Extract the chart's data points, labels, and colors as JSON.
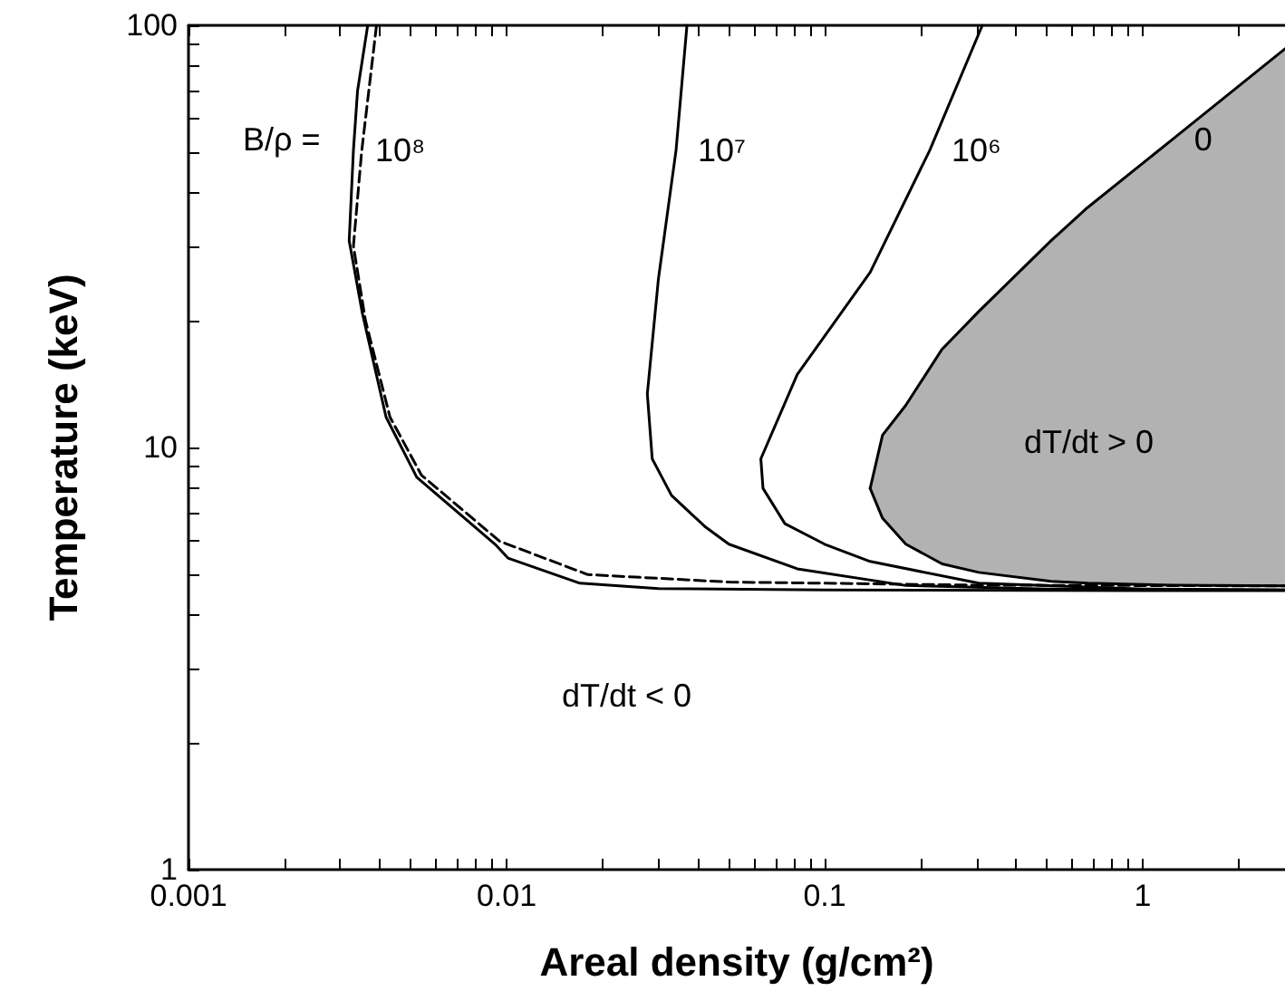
{
  "chart_data": {
    "type": "line",
    "xlabel": "Areal density (g/cm²)",
    "ylabel": "Temperature (keV)",
    "log": "xy",
    "grid": false,
    "legend": false,
    "marker": "none",
    "xlim": [
      0.001,
      2.8
    ],
    "ylim": [
      1,
      100
    ],
    "xticks": [
      0.001,
      {
        "value": 0.002,
        "label": null
      },
      {
        "value": 0.003,
        "label": null
      },
      {
        "value": 0.004,
        "label": null
      },
      {
        "value": 0.005,
        "label": null
      },
      {
        "value": 0.006,
        "label": null
      },
      {
        "value": 0.007,
        "label": null
      },
      {
        "value": 0.008,
        "label": null
      },
      {
        "value": 0.009,
        "label": null
      },
      0.01,
      {
        "value": 0.02,
        "label": null
      },
      {
        "value": 0.03,
        "label": null
      },
      {
        "value": 0.04,
        "label": null
      },
      {
        "value": 0.05,
        "label": null
      },
      {
        "value": 0.06,
        "label": null
      },
      {
        "value": 0.07,
        "label": null
      },
      {
        "value": 0.08,
        "label": null
      },
      {
        "value": 0.09,
        "label": null
      },
      0.1,
      {
        "value": 0.2,
        "label": null
      },
      {
        "value": 0.3,
        "label": null
      },
      {
        "value": 0.4,
        "label": null
      },
      {
        "value": 0.5,
        "label": null
      },
      {
        "value": 0.6,
        "label": null
      },
      {
        "value": 0.7,
        "label": null
      },
      {
        "value": 0.8,
        "label": null
      },
      {
        "value": 0.9,
        "label": null
      },
      1,
      {
        "value": 2,
        "label": null
      }
    ],
    "yticks": [
      1,
      {
        "value": 2,
        "label": null
      },
      {
        "value": 3,
        "label": null
      },
      {
        "value": 4,
        "label": null
      },
      {
        "value": 5,
        "label": null
      },
      {
        "value": 6,
        "label": null
      },
      {
        "value": 7,
        "label": null
      },
      {
        "value": 8,
        "label": null
      },
      {
        "value": 9,
        "label": null
      },
      10,
      {
        "value": 20,
        "label": null
      },
      {
        "value": 30,
        "label": null
      },
      {
        "value": 40,
        "label": null
      },
      {
        "value": 50,
        "label": null
      },
      {
        "value": 60,
        "label": null
      },
      {
        "value": 70,
        "label": null
      },
      {
        "value": 80,
        "label": null
      },
      {
        "value": 90,
        "label": null
      },
      100
    ],
    "series": [
      {
        "type": "line",
        "name": "0",
        "color": "#000000",
        "x": [
          0.139,
          0.152,
          0.18,
          0.234,
          0.305,
          0.515,
          0.67,
          1.24,
          2.8
        ],
        "values": [
          8,
          10.7,
          12.6,
          17.1,
          21,
          30.9,
          37,
          53.7,
          88
        ],
        "upper": [
          8,
          10.7,
          12.6,
          17.1,
          21,
          30.9,
          37,
          53.7,
          88
        ],
        "lower": [
          8,
          6.8,
          5.9,
          5.3,
          5.06,
          4.82,
          4.77,
          4.72,
          4.7
        ]
      },
      {
        "color": "#000000",
        "line_style": "dashed",
        "x": [
          0.0039,
          0.0035,
          0.0033,
          0.0036,
          0.0043,
          0.0054,
          0.0095,
          0.018,
          0.05,
          0.3,
          2.8
        ],
        "values": [
          100,
          50,
          30,
          20,
          11.8,
          8.6,
          6,
          5,
          4.8,
          4.72,
          4.7
        ]
      },
      {
        "name": "10⁸",
        "color": "#000000",
        "line_style": "solid",
        "x": [
          0.00366,
          0.0034,
          0.0033,
          0.0032,
          0.00352,
          0.00418,
          0.00522,
          0.0092,
          0.0101,
          0.017,
          0.03,
          0.1,
          1,
          2.8
        ],
        "values": [
          100,
          70,
          50.6,
          30.9,
          20.8,
          11.8,
          8.5,
          5.9,
          5.47,
          4.77,
          4.63,
          4.6,
          4.58,
          4.58
        ]
      },
      {
        "name": "10⁷",
        "color": "#000000",
        "line_style": "solid",
        "x": [
          0.0369,
          0.0341,
          0.03,
          0.0277,
          0.0287,
          0.033,
          0.042,
          0.05,
          0.082,
          0.18,
          0.5,
          2.8
        ],
        "values": [
          100,
          50.6,
          25,
          13.4,
          9.4,
          7.7,
          6.5,
          5.9,
          5.16,
          4.71,
          4.62,
          4.6
        ]
      },
      {
        "color": "#000000",
        "line_style": "solid",
        "x": [
          0.139,
          0.152,
          0.18,
          0.234,
          0.305,
          0.515,
          0.67,
          1.24,
          2.8
        ],
        "values": [
          8,
          6.8,
          5.9,
          5.3,
          5.06,
          4.82,
          4.77,
          4.72,
          4.7
        ]
      },
      {
        "name": "10⁶",
        "color": "#000000",
        "line_style": "solid",
        "x": [
          0.313,
          0.214,
          0.139,
          0.082,
          0.063,
          0.064,
          0.075,
          0.1,
          0.139,
          0.305,
          1,
          2.8
        ],
        "values": [
          100,
          50.6,
          26,
          14.9,
          9.4,
          8,
          6.6,
          5.9,
          5.37,
          4.77,
          4.62,
          4.6
        ]
      }
    ],
    "annotations": [
      "B/ρ =",
      "dT/dt > 0",
      "dT/dt < 0"
    ]
  }
}
